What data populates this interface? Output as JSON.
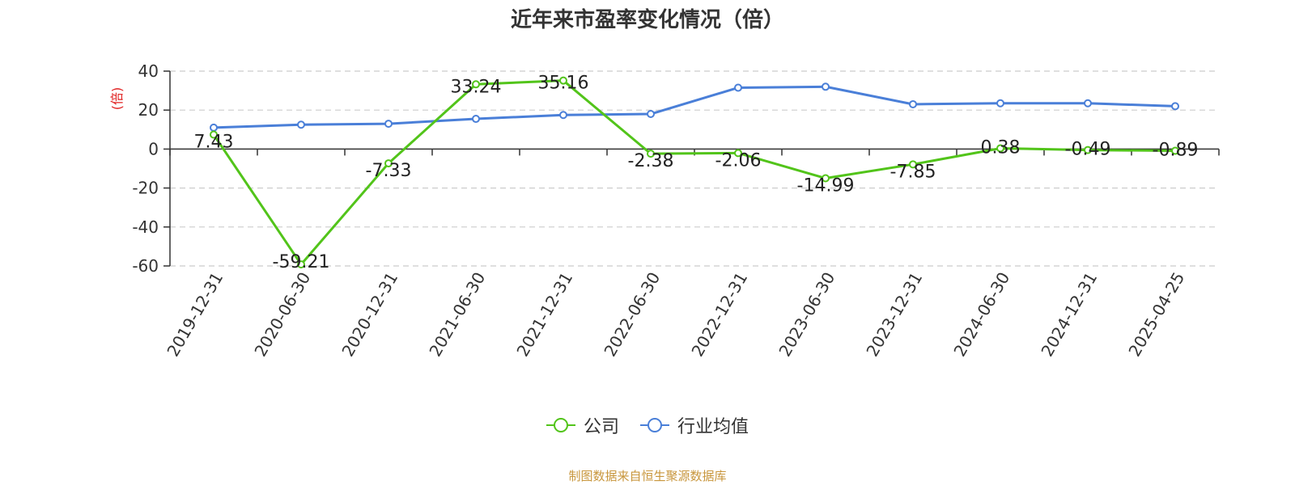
{
  "chart_data": {
    "type": "line",
    "title": "近年来市盈率变化情况（倍）",
    "ylabel": "(倍)",
    "xlabel": "",
    "categories": [
      "2019-12-31",
      "2020-06-30",
      "2020-12-31",
      "2021-06-30",
      "2021-12-31",
      "2022-06-30",
      "2022-12-31",
      "2023-06-30",
      "2023-12-31",
      "2024-06-30",
      "2024-12-31",
      "2025-04-25"
    ],
    "ylim": [
      -60,
      40
    ],
    "yticks": [
      40,
      20,
      0,
      -20,
      -40,
      -60
    ],
    "grid": true,
    "legend_position": "bottom",
    "series": [
      {
        "name": "公司",
        "color": "#52c41a",
        "values": [
          7.43,
          -59.21,
          -7.33,
          33.24,
          35.16,
          -2.38,
          -2.06,
          -14.99,
          -7.85,
          0.38,
          -0.49,
          -0.89
        ],
        "labels": [
          "7.43",
          "-59.21",
          "-7.33",
          "33.24",
          "35.16",
          "-2.38",
          "-2.06",
          "-14.99",
          "-7.85",
          "0.38",
          "-0.49",
          "-0.89"
        ]
      },
      {
        "name": "行业均值",
        "color": "#4a7fd8",
        "values": [
          11,
          12.5,
          13,
          15.5,
          17.5,
          18,
          31.5,
          32,
          23,
          23.5,
          23.5,
          22
        ]
      }
    ]
  },
  "source_note": "制图数据来自恒生聚源数据库"
}
